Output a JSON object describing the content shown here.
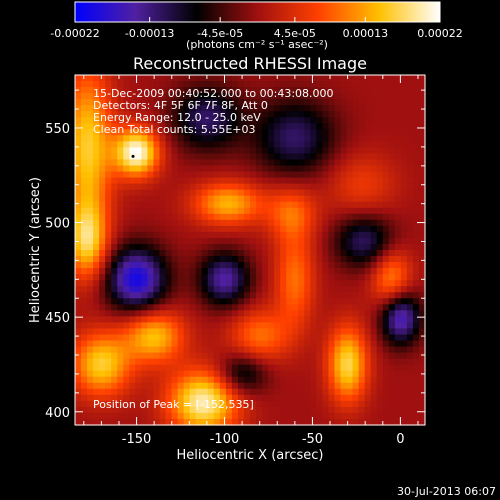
{
  "chart_data": {
    "type": "heatmap",
    "title": "Reconstructed RHESSI Image",
    "xlabel": "Heliocentric X (arcsec)",
    "ylabel": "Heliocentric Y (arcsec)",
    "xlim": [
      -185,
      14
    ],
    "ylim": [
      393,
      578
    ],
    "x_ticks": [
      -150,
      -100,
      -50,
      0
    ],
    "y_ticks": [
      400,
      450,
      500,
      550
    ],
    "colorbar": {
      "min": -0.00022,
      "max": 0.00022,
      "tick_labels": [
        "-0.00022",
        "-0.00013",
        "-4.5e-05",
        "4.5e-05",
        "0.00013",
        "0.00022"
      ],
      "tick_values": [
        -0.00022,
        -0.00013,
        -4.5e-05,
        4.5e-05,
        0.00013,
        0.00022
      ],
      "units_label": "(photons cm⁻² s⁻¹ asec⁻²)",
      "colors": [
        "#0000ff",
        "#5020a0",
        "#000000",
        "#a01010",
        "#ff4000",
        "#ffc000",
        "#ffffff"
      ]
    },
    "annotations": [
      "15-Dec-2009 00:40:52.000 to 00:43:08.000",
      "Detectors: 4F 5F 6F 7F 8F, Att 0",
      "Energy Range: 12.0 - 25.0 keV",
      "Clean     Total counts: 5.55E+03"
    ],
    "peak_text": "Position of Peak = [-152,535]",
    "peak": [
      -152,
      535
    ],
    "emission_sources": [
      {
        "x": -178,
        "y": 540,
        "v": 0.00016,
        "sx": 10,
        "sy": 30
      },
      {
        "x": -150,
        "y": 537,
        "v": 0.00022,
        "sx": 9,
        "sy": 9
      },
      {
        "x": -178,
        "y": 490,
        "v": 0.00015,
        "sx": 8,
        "sy": 14
      },
      {
        "x": -98,
        "y": 510,
        "v": 0.00014,
        "sx": 14,
        "sy": 8
      },
      {
        "x": -62,
        "y": 505,
        "v": 9e-05,
        "sx": 10,
        "sy": 10
      },
      {
        "x": -22,
        "y": 520,
        "v": 6e-05,
        "sx": 14,
        "sy": 12
      },
      {
        "x": -112,
        "y": 405,
        "v": 0.0002,
        "sx": 14,
        "sy": 12
      },
      {
        "x": -140,
        "y": 440,
        "v": 0.00015,
        "sx": 12,
        "sy": 10
      },
      {
        "x": -170,
        "y": 425,
        "v": 0.00016,
        "sx": 12,
        "sy": 12
      },
      {
        "x": -30,
        "y": 425,
        "v": 0.00017,
        "sx": 8,
        "sy": 14
      },
      {
        "x": -60,
        "y": 470,
        "v": 0.0001,
        "sx": 8,
        "sy": 18
      },
      {
        "x": -80,
        "y": 440,
        "v": 0.0001,
        "sx": 12,
        "sy": 10
      },
      {
        "x": -5,
        "y": 470,
        "v": 0.00012,
        "sx": 8,
        "sy": 12
      },
      {
        "x": -150,
        "y": 470,
        "v": -0.0002,
        "sx": 12,
        "sy": 12
      },
      {
        "x": -110,
        "y": 555,
        "v": -0.00012,
        "sx": 14,
        "sy": 12
      },
      {
        "x": -60,
        "y": 545,
        "v": -0.00012,
        "sx": 16,
        "sy": 14
      },
      {
        "x": 0,
        "y": 450,
        "v": -0.00018,
        "sx": 8,
        "sy": 10
      },
      {
        "x": -100,
        "y": 470,
        "v": -0.00015,
        "sx": 10,
        "sy": 10
      },
      {
        "x": -20,
        "y": 490,
        "v": -0.00012,
        "sx": 12,
        "sy": 10
      },
      {
        "x": -90,
        "y": 420,
        "v": -0.0001,
        "sx": 10,
        "sy": 8
      }
    ]
  },
  "footer": {
    "date": "30-Jul-2013 06:07"
  }
}
